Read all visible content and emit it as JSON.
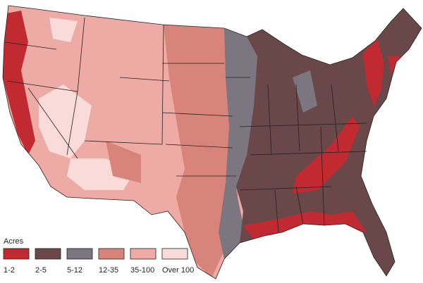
{
  "legend": {
    "title": "Acres",
    "items": [
      {
        "label": "1-2",
        "color": "#c22a31"
      },
      {
        "label": "2-5",
        "color": "#6a4749"
      },
      {
        "label": "5-12",
        "color": "#7b7680"
      },
      {
        "label": "12-35",
        "color": "#d9847a"
      },
      {
        "label": "35-100",
        "color": "#eeaaa5"
      },
      {
        "label": "Over 100",
        "color": "#f9dcd9"
      }
    ]
  }
}
